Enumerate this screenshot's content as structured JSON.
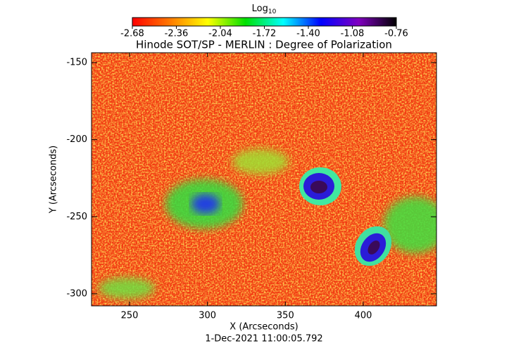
{
  "chart_data": {
    "type": "heatmap",
    "title": "Hinode SOT/SP - MERLIN : Degree of Polarization",
    "x_label": "X (Arcseconds)",
    "y_label": "Y (Arcseconds)",
    "footer": "1-Dec-2021 11:00:05.792",
    "xlim": [
      225.6,
      447
    ],
    "xticks": [
      250,
      300,
      350,
      400
    ],
    "ylim": [
      -307.8,
      -143.6
    ],
    "yticks": [
      -300,
      -250,
      -200,
      -150
    ],
    "grid": false,
    "colorbar": {
      "label": {
        "base": "Log",
        "subscript": "10"
      },
      "lim": [
        -2.68,
        -0.76
      ],
      "ticks": [
        -2.68,
        -2.36,
        -2.04,
        -1.72,
        {
          "value": -1.4,
          "label": "-1.40"
        },
        -1.08,
        -0.76
      ],
      "colors": [
        "#ff0000",
        "#ff7a00",
        "#ffff00",
        "#00e000",
        "#00ffff",
        "#0000ff",
        "#8000c0",
        "#000000"
      ]
    }
  }
}
